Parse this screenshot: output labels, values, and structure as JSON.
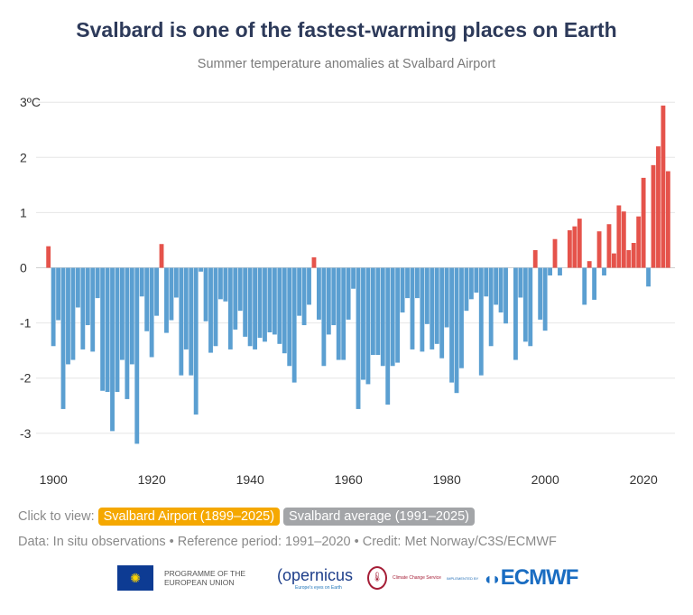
{
  "title": "Svalbard is one of the fastest-warming places on Earth",
  "subtitle": "Summer temperature anomalies at Svalbard Airport",
  "controls": {
    "label": "Click to view:",
    "buttons": [
      {
        "label": "Svalbard Airport (1899–2025)",
        "active": true
      },
      {
        "label": "Svalbard average (1991–2025)",
        "active": false
      }
    ]
  },
  "credit": "Data: In situ observations • Reference period: 1991–2020 • Credit: Met Norway/C3S/ECMWF",
  "logos": {
    "eu": "PROGRAMME OF THE EUROPEAN UNION",
    "copernicus": "opernicus",
    "copernicus_tagline": "Europe's eyes on Earth",
    "c3s": "Climate Change Service",
    "implemented_by": "IMPLEMENTED BY",
    "ecmwf": "ECMWF"
  },
  "colors": {
    "positive": "#e5534b",
    "negative": "#5b9fd1",
    "title": "#2d3a5a"
  },
  "chart_data": {
    "type": "bar",
    "title": "Svalbard is one of the fastest-warming places on Earth",
    "subtitle": "Summer temperature anomalies at Svalbard Airport",
    "xlabel": "",
    "ylabel": "",
    "unit": "°C",
    "ylim": [
      -3.5,
      3
    ],
    "yticks": [
      {
        "v": 3,
        "label": "3ºC"
      },
      {
        "v": 2,
        "label": "2"
      },
      {
        "v": 1,
        "label": "1"
      },
      {
        "v": 0,
        "label": "0"
      },
      {
        "v": -1,
        "label": "-1"
      },
      {
        "v": -2,
        "label": "-2"
      },
      {
        "v": -3,
        "label": "-3"
      }
    ],
    "xticks": [
      1900,
      1920,
      1940,
      1960,
      1980,
      2000,
      2020
    ],
    "grid": true,
    "start_year": 1899,
    "values": [
      0.39,
      -1.42,
      -0.95,
      -2.56,
      -1.75,
      -1.67,
      -0.72,
      -1.48,
      -1.04,
      -1.52,
      -0.55,
      -2.23,
      -2.25,
      -2.96,
      -2.25,
      -1.67,
      -2.38,
      -1.75,
      -3.19,
      -0.52,
      -1.15,
      -1.62,
      -0.87,
      0.43,
      -1.18,
      -0.95,
      -0.54,
      -1.95,
      -1.48,
      -1.95,
      -2.66,
      -0.07,
      -0.97,
      -1.54,
      -1.42,
      -0.57,
      -0.61,
      -1.48,
      -1.12,
      -0.78,
      -1.25,
      -1.42,
      -1.48,
      -1.27,
      -1.34,
      -1.17,
      -1.21,
      -1.38,
      -1.55,
      -1.78,
      -2.08,
      -0.87,
      -1.04,
      -0.67,
      0.19,
      -0.94,
      -1.78,
      -1.21,
      -1.04,
      -1.67,
      -1.67,
      -0.94,
      -0.38,
      -2.56,
      -2.03,
      -2.11,
      -1.58,
      -1.58,
      -1.78,
      -2.48,
      -1.78,
      -1.72,
      -0.81,
      -0.55,
      -1.48,
      -0.55,
      -1.52,
      -1.02,
      -1.48,
      -1.38,
      -1.64,
      -1.08,
      -2.08,
      -2.27,
      -1.82,
      -0.78,
      -0.57,
      -0.45,
      -1.95,
      -0.52,
      -1.42,
      -0.67,
      -0.81,
      -1.01,
      0,
      -1.67,
      -0.54,
      -1.34,
      -1.42,
      0.32,
      -0.94,
      -1.14,
      -0.14,
      0.52,
      -0.14,
      0,
      0.68,
      0.75,
      0.89,
      -0.67,
      0.12,
      -0.58,
      0.66,
      -0.14,
      0.79,
      0.26,
      1.13,
      1.02,
      0.32,
      0.45,
      0.93,
      1.63,
      -0.34,
      1.86,
      2.2,
      2.94,
      1.75
    ]
  }
}
